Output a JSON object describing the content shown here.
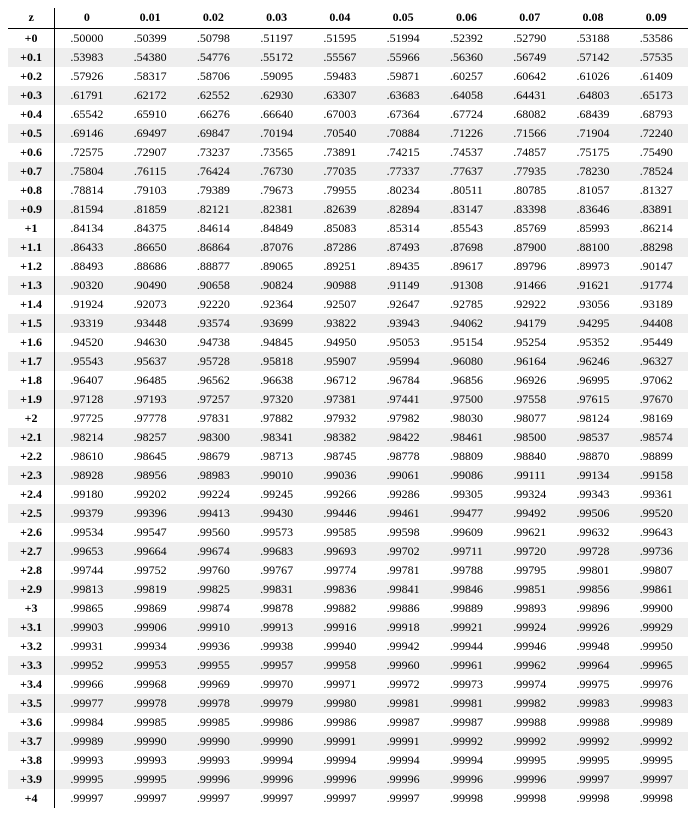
{
  "table": {
    "corner": "z",
    "headers": [
      "0",
      "0.01",
      "0.02",
      "0.03",
      "0.04",
      "0.05",
      "0.06",
      "0.07",
      "0.08",
      "0.09"
    ],
    "rows": [
      {
        "z": "+0",
        "v": [
          ".50000",
          ".50399",
          ".50798",
          ".51197",
          ".51595",
          ".51994",
          ".52392",
          ".52790",
          ".53188",
          ".53586"
        ]
      },
      {
        "z": "+0.1",
        "v": [
          ".53983",
          ".54380",
          ".54776",
          ".55172",
          ".55567",
          ".55966",
          ".56360",
          ".56749",
          ".57142",
          ".57535"
        ]
      },
      {
        "z": "+0.2",
        "v": [
          ".57926",
          ".58317",
          ".58706",
          ".59095",
          ".59483",
          ".59871",
          ".60257",
          ".60642",
          ".61026",
          ".61409"
        ]
      },
      {
        "z": "+0.3",
        "v": [
          ".61791",
          ".62172",
          ".62552",
          ".62930",
          ".63307",
          ".63683",
          ".64058",
          ".64431",
          ".64803",
          ".65173"
        ]
      },
      {
        "z": "+0.4",
        "v": [
          ".65542",
          ".65910",
          ".66276",
          ".66640",
          ".67003",
          ".67364",
          ".67724",
          ".68082",
          ".68439",
          ".68793"
        ]
      },
      {
        "z": "+0.5",
        "v": [
          ".69146",
          ".69497",
          ".69847",
          ".70194",
          ".70540",
          ".70884",
          ".71226",
          ".71566",
          ".71904",
          ".72240"
        ]
      },
      {
        "z": "+0.6",
        "v": [
          ".72575",
          ".72907",
          ".73237",
          ".73565",
          ".73891",
          ".74215",
          ".74537",
          ".74857",
          ".75175",
          ".75490"
        ]
      },
      {
        "z": "+0.7",
        "v": [
          ".75804",
          ".76115",
          ".76424",
          ".76730",
          ".77035",
          ".77337",
          ".77637",
          ".77935",
          ".78230",
          ".78524"
        ]
      },
      {
        "z": "+0.8",
        "v": [
          ".78814",
          ".79103",
          ".79389",
          ".79673",
          ".79955",
          ".80234",
          ".80511",
          ".80785",
          ".81057",
          ".81327"
        ]
      },
      {
        "z": "+0.9",
        "v": [
          ".81594",
          ".81859",
          ".82121",
          ".82381",
          ".82639",
          ".82894",
          ".83147",
          ".83398",
          ".83646",
          ".83891"
        ]
      },
      {
        "z": "+1",
        "v": [
          ".84134",
          ".84375",
          ".84614",
          ".84849",
          ".85083",
          ".85314",
          ".85543",
          ".85769",
          ".85993",
          ".86214"
        ]
      },
      {
        "z": "+1.1",
        "v": [
          ".86433",
          ".86650",
          ".86864",
          ".87076",
          ".87286",
          ".87493",
          ".87698",
          ".87900",
          ".88100",
          ".88298"
        ]
      },
      {
        "z": "+1.2",
        "v": [
          ".88493",
          ".88686",
          ".88877",
          ".89065",
          ".89251",
          ".89435",
          ".89617",
          ".89796",
          ".89973",
          ".90147"
        ]
      },
      {
        "z": "+1.3",
        "v": [
          ".90320",
          ".90490",
          ".90658",
          ".90824",
          ".90988",
          ".91149",
          ".91308",
          ".91466",
          ".91621",
          ".91774"
        ]
      },
      {
        "z": "+1.4",
        "v": [
          ".91924",
          ".92073",
          ".92220",
          ".92364",
          ".92507",
          ".92647",
          ".92785",
          ".92922",
          ".93056",
          ".93189"
        ]
      },
      {
        "z": "+1.5",
        "v": [
          ".93319",
          ".93448",
          ".93574",
          ".93699",
          ".93822",
          ".93943",
          ".94062",
          ".94179",
          ".94295",
          ".94408"
        ]
      },
      {
        "z": "+1.6",
        "v": [
          ".94520",
          ".94630",
          ".94738",
          ".94845",
          ".94950",
          ".95053",
          ".95154",
          ".95254",
          ".95352",
          ".95449"
        ]
      },
      {
        "z": "+1.7",
        "v": [
          ".95543",
          ".95637",
          ".95728",
          ".95818",
          ".95907",
          ".95994",
          ".96080",
          ".96164",
          ".96246",
          ".96327"
        ]
      },
      {
        "z": "+1.8",
        "v": [
          ".96407",
          ".96485",
          ".96562",
          ".96638",
          ".96712",
          ".96784",
          ".96856",
          ".96926",
          ".96995",
          ".97062"
        ]
      },
      {
        "z": "+1.9",
        "v": [
          ".97128",
          ".97193",
          ".97257",
          ".97320",
          ".97381",
          ".97441",
          ".97500",
          ".97558",
          ".97615",
          ".97670"
        ]
      },
      {
        "z": "+2",
        "v": [
          ".97725",
          ".97778",
          ".97831",
          ".97882",
          ".97932",
          ".97982",
          ".98030",
          ".98077",
          ".98124",
          ".98169"
        ]
      },
      {
        "z": "+2.1",
        "v": [
          ".98214",
          ".98257",
          ".98300",
          ".98341",
          ".98382",
          ".98422",
          ".98461",
          ".98500",
          ".98537",
          ".98574"
        ]
      },
      {
        "z": "+2.2",
        "v": [
          ".98610",
          ".98645",
          ".98679",
          ".98713",
          ".98745",
          ".98778",
          ".98809",
          ".98840",
          ".98870",
          ".98899"
        ]
      },
      {
        "z": "+2.3",
        "v": [
          ".98928",
          ".98956",
          ".98983",
          ".99010",
          ".99036",
          ".99061",
          ".99086",
          ".99111",
          ".99134",
          ".99158"
        ]
      },
      {
        "z": "+2.4",
        "v": [
          ".99180",
          ".99202",
          ".99224",
          ".99245",
          ".99266",
          ".99286",
          ".99305",
          ".99324",
          ".99343",
          ".99361"
        ]
      },
      {
        "z": "+2.5",
        "v": [
          ".99379",
          ".99396",
          ".99413",
          ".99430",
          ".99446",
          ".99461",
          ".99477",
          ".99492",
          ".99506",
          ".99520"
        ]
      },
      {
        "z": "+2.6",
        "v": [
          ".99534",
          ".99547",
          ".99560",
          ".99573",
          ".99585",
          ".99598",
          ".99609",
          ".99621",
          ".99632",
          ".99643"
        ]
      },
      {
        "z": "+2.7",
        "v": [
          ".99653",
          ".99664",
          ".99674",
          ".99683",
          ".99693",
          ".99702",
          ".99711",
          ".99720",
          ".99728",
          ".99736"
        ]
      },
      {
        "z": "+2.8",
        "v": [
          ".99744",
          ".99752",
          ".99760",
          ".99767",
          ".99774",
          ".99781",
          ".99788",
          ".99795",
          ".99801",
          ".99807"
        ]
      },
      {
        "z": "+2.9",
        "v": [
          ".99813",
          ".99819",
          ".99825",
          ".99831",
          ".99836",
          ".99841",
          ".99846",
          ".99851",
          ".99856",
          ".99861"
        ]
      },
      {
        "z": "+3",
        "v": [
          ".99865",
          ".99869",
          ".99874",
          ".99878",
          ".99882",
          ".99886",
          ".99889",
          ".99893",
          ".99896",
          ".99900"
        ]
      },
      {
        "z": "+3.1",
        "v": [
          ".99903",
          ".99906",
          ".99910",
          ".99913",
          ".99916",
          ".99918",
          ".99921",
          ".99924",
          ".99926",
          ".99929"
        ]
      },
      {
        "z": "+3.2",
        "v": [
          ".99931",
          ".99934",
          ".99936",
          ".99938",
          ".99940",
          ".99942",
          ".99944",
          ".99946",
          ".99948",
          ".99950"
        ]
      },
      {
        "z": "+3.3",
        "v": [
          ".99952",
          ".99953",
          ".99955",
          ".99957",
          ".99958",
          ".99960",
          ".99961",
          ".99962",
          ".99964",
          ".99965"
        ]
      },
      {
        "z": "+3.4",
        "v": [
          ".99966",
          ".99968",
          ".99969",
          ".99970",
          ".99971",
          ".99972",
          ".99973",
          ".99974",
          ".99975",
          ".99976"
        ]
      },
      {
        "z": "+3.5",
        "v": [
          ".99977",
          ".99978",
          ".99978",
          ".99979",
          ".99980",
          ".99981",
          ".99981",
          ".99982",
          ".99983",
          ".99983"
        ]
      },
      {
        "z": "+3.6",
        "v": [
          ".99984",
          ".99985",
          ".99985",
          ".99986",
          ".99986",
          ".99987",
          ".99987",
          ".99988",
          ".99988",
          ".99989"
        ]
      },
      {
        "z": "+3.7",
        "v": [
          ".99989",
          ".99990",
          ".99990",
          ".99990",
          ".99991",
          ".99991",
          ".99992",
          ".99992",
          ".99992",
          ".99992"
        ]
      },
      {
        "z": "+3.8",
        "v": [
          ".99993",
          ".99993",
          ".99993",
          ".99994",
          ".99994",
          ".99994",
          ".99994",
          ".99995",
          ".99995",
          ".99995"
        ]
      },
      {
        "z": "+3.9",
        "v": [
          ".99995",
          ".99995",
          ".99996",
          ".99996",
          ".99996",
          ".99996",
          ".99996",
          ".99996",
          ".99997",
          ".99997"
        ]
      },
      {
        "z": "+4",
        "v": [
          ".99997",
          ".99997",
          ".99997",
          ".99997",
          ".99997",
          ".99997",
          ".99998",
          ".99998",
          ".99998",
          ".99998"
        ]
      }
    ]
  }
}
